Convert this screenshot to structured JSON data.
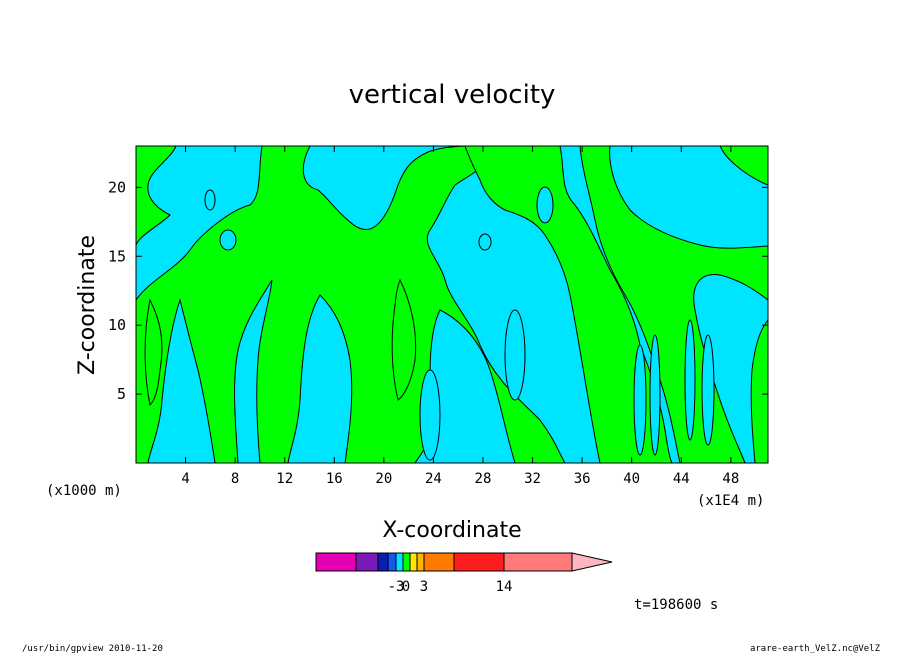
{
  "chart_data": {
    "type": "heatmap",
    "title": "vertical velocity",
    "xlabel": "X-coordinate",
    "ylabel": "Z-coordinate",
    "x_unit_left": "(x1000 m)",
    "x_unit_right": "(x1E4 m)",
    "xlim": [
      0,
      51
    ],
    "ylim": [
      0,
      23
    ],
    "x_ticks": [
      4,
      8,
      12,
      16,
      20,
      24,
      28,
      32,
      36,
      40,
      44,
      48
    ],
    "y_ticks": [
      5,
      10,
      15,
      20
    ],
    "x_tick_labels": [
      "4",
      "8",
      "12",
      "16",
      "20",
      "24",
      "28",
      "32",
      "36",
      "40",
      "44",
      "48"
    ],
    "y_tick_labels": [
      "5",
      "10",
      "15",
      "20"
    ],
    "field_colors": {
      "negative": "#00e5ff",
      "positive": "#00ff00",
      "contour": "#000000"
    },
    "colorbar": {
      "colors": [
        "#e600b4",
        "#7a1ab8",
        "#0a1eb4",
        "#1458f0",
        "#00e5ff",
        "#00ff00",
        "#ffe600",
        "#ffb400",
        "#ff7a00",
        "#ff1e1e",
        "#ff7a78",
        "#ffb6c1"
      ],
      "labels": [
        "-3",
        "0",
        "3",
        "14"
      ]
    },
    "time_label": "t=198600 s"
  },
  "footer": {
    "left": "/usr/bin/gpview   2010-11-20",
    "right": "arare-earth_VelZ.nc@VelZ"
  }
}
